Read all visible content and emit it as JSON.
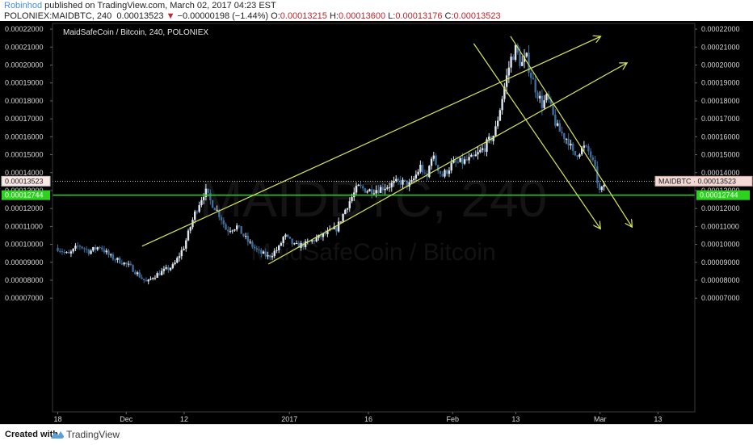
{
  "header": {
    "author": "Robinhod",
    "published": " published on TradingView.com, March 02, 2017 04:23 EST",
    "symbol": "POLONIEX:MAIDBTC, 240",
    "last": "0.00013523",
    "change": "−0.00000198 (−1.44%)",
    "o_label": "O:",
    "o_value": "0.00013215",
    "h_label": "H:",
    "h_value": "0.00013600",
    "l_label": "L:",
    "l_value": "0.00013176",
    "c_label": "C:",
    "c_value": "0.00013523"
  },
  "footer": {
    "created": "Created with",
    "brand": "TradingView"
  },
  "colors": {
    "up": "#dfe8f0",
    "down": "#3f6d99",
    "trend": "#d9e65a",
    "green": "#2cd21e",
    "background": "#000000"
  },
  "chart_data": {
    "type": "candlestick",
    "title": "MaidSafeCoin / Bitcoin, 240, POLONIEX",
    "watermark": "MAIDBTC, 240",
    "watermark_sub": "MaidSafeCoin / Bitcoin",
    "ylim": [
      6.6e-06,
      0.0002232
    ],
    "y_ticks": [
      "0.00007000",
      "0.00008000",
      "0.00009000",
      "0.00010000",
      "0.00011000",
      "0.00012000",
      "0.00013000",
      "0.00014000",
      "0.00015000",
      "0.00016000",
      "0.00017000",
      "0.00018000",
      "0.00019000",
      "0.00020000",
      "0.00021000",
      "0.00022000"
    ],
    "x_labels": [
      {
        "label": "18",
        "day": 0
      },
      {
        "label": "Dec",
        "day": 13
      },
      {
        "label": "12",
        "day": 24
      },
      {
        "label": "2017",
        "day": 44
      },
      {
        "label": "16",
        "day": 59
      },
      {
        "label": "Feb",
        "day": 75
      },
      {
        "label": "13",
        "day": 87
      },
      {
        "label": "Mar",
        "day": 103
      },
      {
        "label": "13",
        "day": 114
      }
    ],
    "x_domain_days": [
      -1,
      121
    ],
    "series_path": [
      [
        0,
        9.8e-05
      ],
      [
        2,
        9.4e-05
      ],
      [
        4,
        9.95e-05
      ],
      [
        6,
        9.6e-05
      ],
      [
        8,
        9.9e-05
      ],
      [
        10,
        9.3e-05
      ],
      [
        12,
        9.05e-05
      ],
      [
        14,
        8.7e-05
      ],
      [
        16,
        8.1e-05
      ],
      [
        17,
        7.85e-05
      ],
      [
        18,
        8.2e-05
      ],
      [
        20,
        8.5e-05
      ],
      [
        22,
        8.8e-05
      ],
      [
        24,
        9.9e-05
      ],
      [
        25,
        0.000108
      ],
      [
        26,
        0.000117
      ],
      [
        27,
        0.000124
      ],
      [
        28,
        0.00013
      ],
      [
        29,
        0.000124
      ],
      [
        30,
        0.00012
      ],
      [
        31,
        0.000115
      ],
      [
        32,
        0.000108
      ],
      [
        34,
        0.00011
      ],
      [
        36,
        0.000102
      ],
      [
        38,
        9.6e-05
      ],
      [
        40,
        9.3e-05
      ],
      [
        42,
        9.8e-05
      ],
      [
        43,
        0.000105
      ],
      [
        45,
        9.9e-05
      ],
      [
        47,
        0.0001
      ],
      [
        49,
        0.000103
      ],
      [
        51,
        0.000106
      ],
      [
        53,
        0.000109
      ],
      [
        55,
        0.000122
      ],
      [
        57,
        0.000132
      ],
      [
        59,
        0.00013
      ],
      [
        61,
        0.000131
      ],
      [
        63,
        0.000133
      ],
      [
        65,
        0.000135
      ],
      [
        67,
        0.000133
      ],
      [
        69,
        0.000144
      ],
      [
        70,
        0.000135
      ],
      [
        71,
        0.00015
      ],
      [
        73,
        0.000138
      ],
      [
        75,
        0.000145
      ],
      [
        77,
        0.000146
      ],
      [
        79,
        0.000148
      ],
      [
        81,
        0.000154
      ],
      [
        83,
        0.000162
      ],
      [
        84,
        0.000176
      ],
      [
        85,
        0.00019
      ],
      [
        86,
        0.000203
      ],
      [
        87,
        0.000209
      ],
      [
        88,
        0.0002
      ],
      [
        89,
        0.000204
      ],
      [
        90,
        0.000193
      ],
      [
        91,
        0.000185
      ],
      [
        92,
        0.000178
      ],
      [
        93,
        0.000182
      ],
      [
        94,
        0.000172
      ],
      [
        95,
        0.000164
      ],
      [
        96,
        0.000161
      ],
      [
        97,
        0.000158
      ],
      [
        98,
        0.000149
      ],
      [
        99,
        0.000152
      ],
      [
        100,
        0.000154
      ],
      [
        101,
        0.000151
      ],
      [
        102,
        0.000142
      ],
      [
        103,
        0.000128
      ],
      [
        104,
        0.0001352
      ]
    ],
    "trend_lines": [
      {
        "p1": [
          16,
          9.9e-05
        ],
        "p2": [
          103,
          0.0002158
        ]
      },
      {
        "p1": [
          40,
          8.9e-05
        ],
        "p2": [
          108,
          0.000201
        ]
      },
      {
        "p1": [
          79,
          0.000212
        ],
        "p2": [
          103,
          0.000109
        ]
      },
      {
        "p1": [
          86,
          0.000216
        ],
        "p2": [
          109,
          0.00011
        ]
      }
    ],
    "horizontal_lines": [
      {
        "value": 0.00013523,
        "style": "dotted",
        "color": "#cfcfcf",
        "label": "MAIDBTC · 0.00013523"
      },
      {
        "value": 0.00012744,
        "style": "solid",
        "color": "#2cd21e",
        "label": "0.00012744"
      }
    ],
    "left_labels": [
      {
        "text": "0.00013523",
        "value": 0.00013523
      },
      {
        "text": "0.00012744",
        "value": 0.00012744
      }
    ]
  }
}
